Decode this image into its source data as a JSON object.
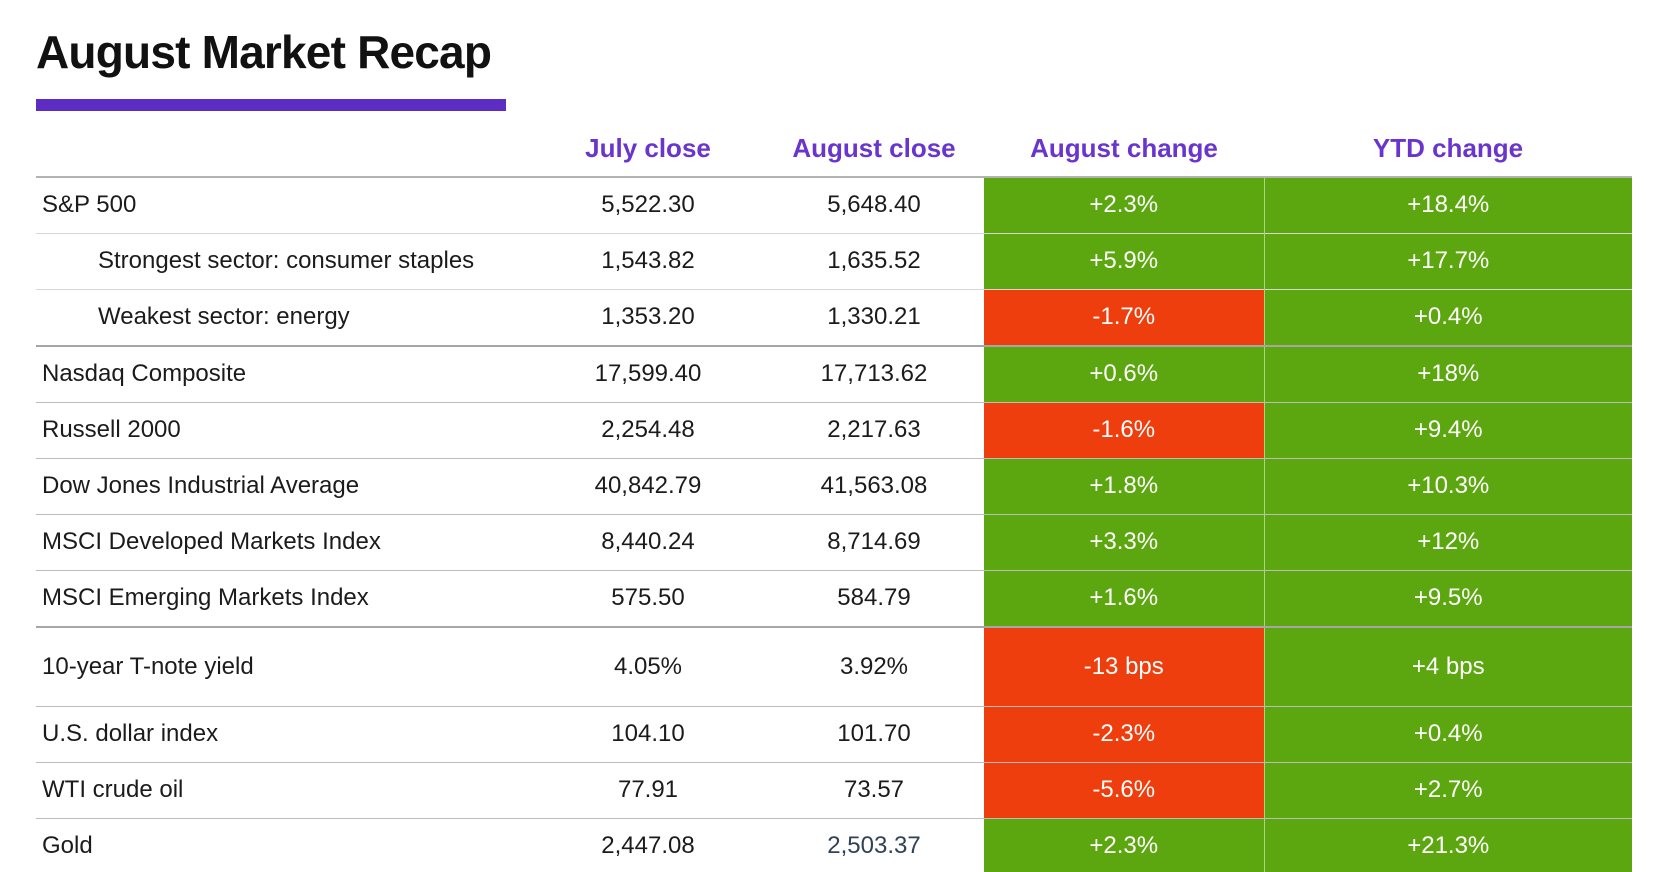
{
  "title": "August Market Recap",
  "colors": {
    "accent_bar": "#5d2cc2",
    "header_text": "#6a35cf",
    "positive_bg": "#5ca70f",
    "negative_bg": "#ef3e0d",
    "gold_highlight_text": "#2f4256"
  },
  "chart_data": {
    "type": "table",
    "title": "August Market Recap",
    "row_label_header": "",
    "columns": [
      "July close",
      "August close",
      "August change",
      "YTD change"
    ],
    "rows": [
      {
        "label": "S&P 500",
        "sub": false,
        "july_close": "5,522.30",
        "august_close": "5,648.40",
        "august_change": "+2.3%",
        "august_change_positive": true,
        "ytd_change": "+18.4%",
        "ytd_change_positive": true
      },
      {
        "label": "Strongest sector: consumer staples",
        "sub": true,
        "july_close": "1,543.82",
        "august_close": "1,635.52",
        "august_change": "+5.9%",
        "august_change_positive": true,
        "ytd_change": "+17.7%",
        "ytd_change_positive": true
      },
      {
        "label": "Weakest sector: energy",
        "sub": true,
        "july_close": "1,353.20",
        "august_close": "1,330.21",
        "august_change": "-1.7%",
        "august_change_positive": false,
        "ytd_change": "+0.4%",
        "ytd_change_positive": true
      },
      {
        "label": "Nasdaq Composite",
        "sub": false,
        "july_close": "17,599.40",
        "august_close": "17,713.62",
        "august_change": "+0.6%",
        "august_change_positive": true,
        "ytd_change": "+18%",
        "ytd_change_positive": true
      },
      {
        "label": "Russell 2000",
        "sub": false,
        "july_close": "2,254.48",
        "august_close": "2,217.63",
        "august_change": "-1.6%",
        "august_change_positive": false,
        "ytd_change": "+9.4%",
        "ytd_change_positive": true
      },
      {
        "label": "Dow Jones Industrial Average",
        "sub": false,
        "july_close": "40,842.79",
        "august_close": "41,563.08",
        "august_change": "+1.8%",
        "august_change_positive": true,
        "ytd_change": "+10.3%",
        "ytd_change_positive": true
      },
      {
        "label": "MSCI Developed Markets Index",
        "sub": false,
        "july_close": "8,440.24",
        "august_close": "8,714.69",
        "august_change": "+3.3%",
        "august_change_positive": true,
        "ytd_change": "+12%",
        "ytd_change_positive": true
      },
      {
        "label": "MSCI Emerging Markets Index",
        "sub": false,
        "july_close": "575.50",
        "august_close": "584.79",
        "august_change": "+1.6%",
        "august_change_positive": true,
        "ytd_change": "+9.5%",
        "ytd_change_positive": true
      },
      {
        "label": "10-year T-note yield",
        "sub": false,
        "july_close": "4.05%",
        "august_close": "3.92%",
        "august_change": "-13 bps",
        "august_change_positive": false,
        "ytd_change": "+4 bps",
        "ytd_change_positive": true
      },
      {
        "label": "U.S. dollar index",
        "sub": false,
        "july_close": "104.10",
        "august_close": "101.70",
        "august_change": "-2.3%",
        "august_change_positive": false,
        "ytd_change": "+0.4%",
        "ytd_change_positive": true
      },
      {
        "label": "WTI crude oil",
        "sub": false,
        "july_close": "77.91",
        "august_close": "73.57",
        "august_change": "-5.6%",
        "august_change_positive": false,
        "ytd_change": "+2.7%",
        "ytd_change_positive": true
      },
      {
        "label": "Gold",
        "sub": false,
        "july_close": "2,447.08",
        "august_close": "2,503.37",
        "august_close_highlight": true,
        "august_change": "+2.3%",
        "august_change_positive": true,
        "ytd_change": "+21.3%",
        "ytd_change_positive": true
      }
    ]
  }
}
